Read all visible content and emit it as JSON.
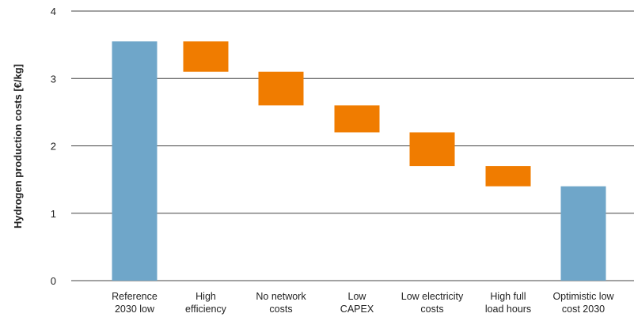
{
  "chart_data": {
    "type": "bar",
    "subtype": "waterfall",
    "title": "",
    "xlabel": "",
    "ylabel": "Hydrogen production costs [€/kg]",
    "ylim": [
      0,
      4
    ],
    "yticks": [
      0,
      1,
      2,
      3,
      4
    ],
    "grid": "horizontal",
    "categories": [
      [
        "Reference",
        "2030 low"
      ],
      [
        "High",
        "efficiency"
      ],
      [
        "No network",
        "costs"
      ],
      [
        "Low",
        "CAPEX"
      ],
      [
        "Low electricity",
        "costs"
      ],
      [
        "High full",
        "load hours"
      ],
      [
        "Optimistic low",
        "cost 2030"
      ]
    ],
    "bars": [
      {
        "start": 0,
        "end": 3.55,
        "kind": "total"
      },
      {
        "start": 3.55,
        "end": 3.1,
        "kind": "decrease"
      },
      {
        "start": 3.1,
        "end": 2.6,
        "kind": "decrease"
      },
      {
        "start": 2.6,
        "end": 2.2,
        "kind": "decrease"
      },
      {
        "start": 2.2,
        "end": 1.7,
        "kind": "decrease"
      },
      {
        "start": 1.7,
        "end": 1.4,
        "kind": "decrease"
      },
      {
        "start": 0,
        "end": 1.4,
        "kind": "total"
      }
    ],
    "colors": {
      "total": "#6fa6c9",
      "decrease": "#f07c00",
      "grid": "#444444"
    }
  }
}
